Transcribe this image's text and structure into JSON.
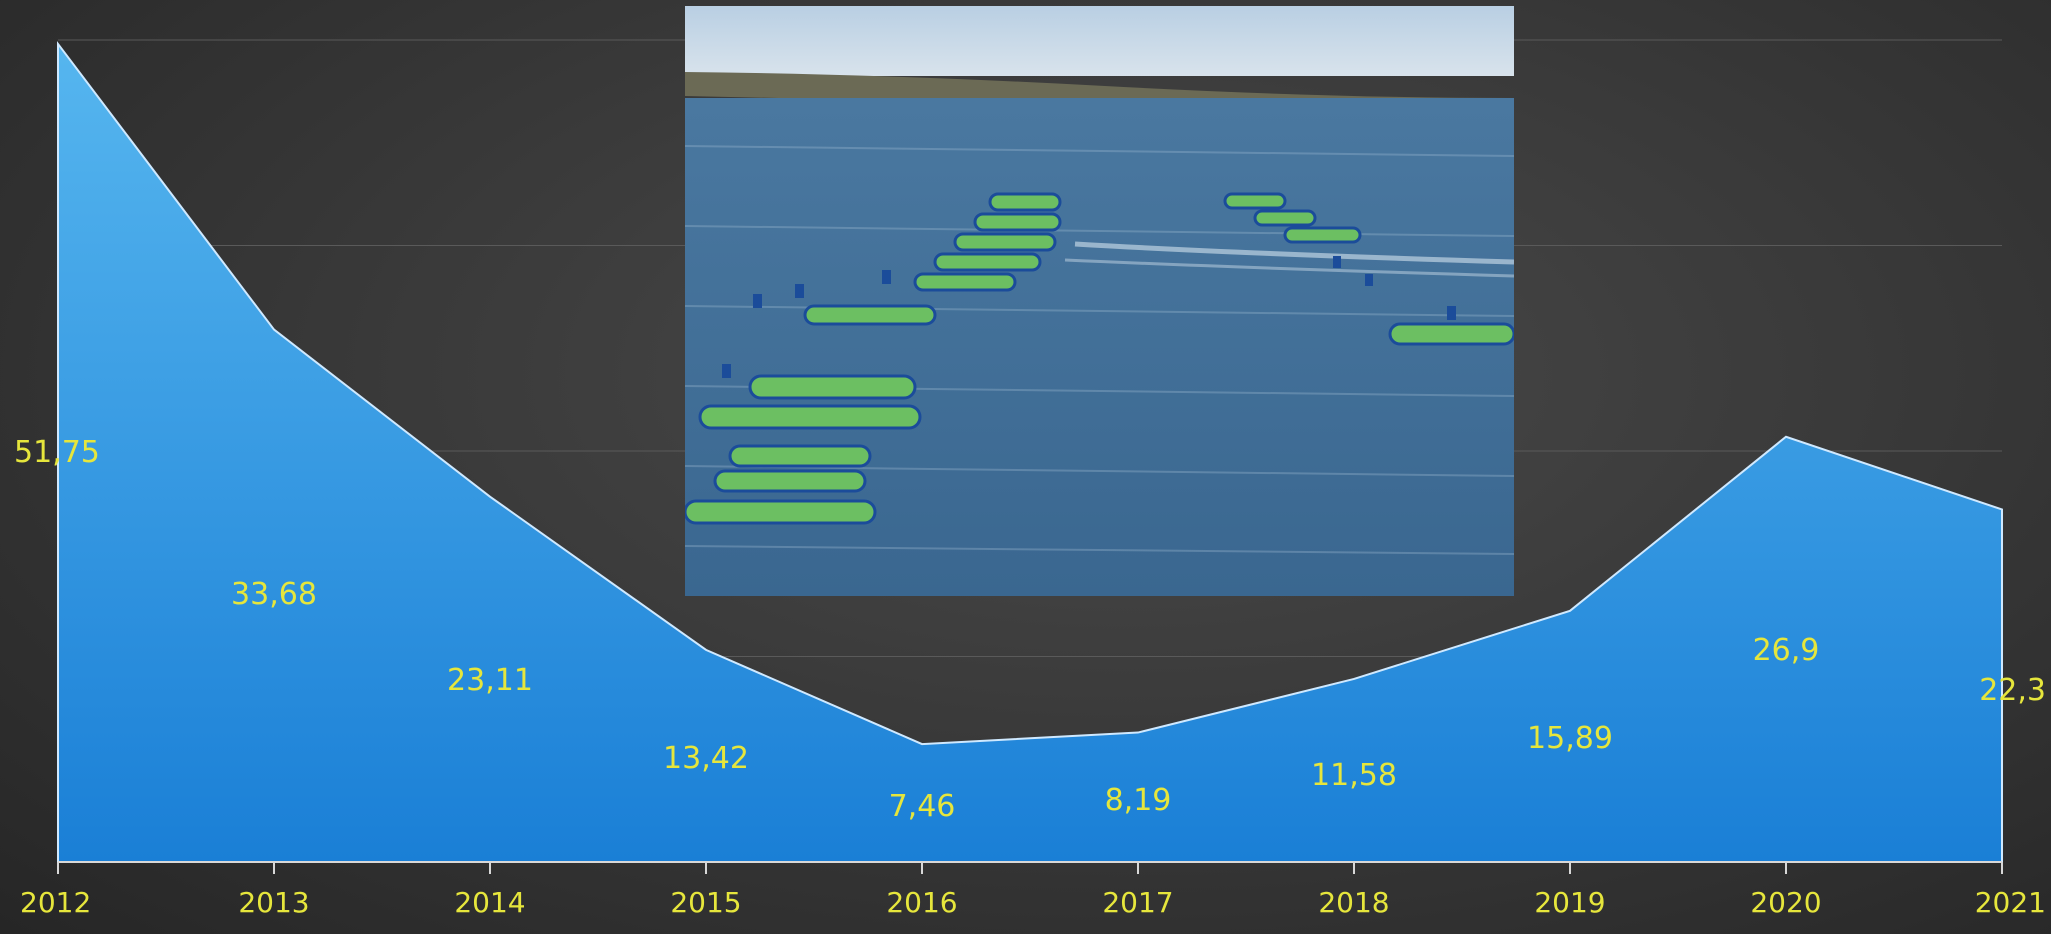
{
  "colors": {
    "area_top": "#56b6ef",
    "area_bottom": "#1a7fd6",
    "label": "#e6e63c",
    "gridline": "#5a5a5a",
    "sky": "#c9d9e8",
    "water": "#3d6d96",
    "shore": "#6a6a5a",
    "net_green": "#6cbf62",
    "buoy": "#1b4c9a"
  },
  "photo": {
    "description_icon": "fish-farm-photo"
  },
  "chart_data": {
    "type": "area",
    "x": [
      "2012",
      "2013",
      "2014",
      "2015",
      "2016",
      "2017",
      "2018",
      "2019",
      "2020",
      "2021"
    ],
    "values": [
      51.75,
      33.68,
      23.11,
      13.42,
      7.46,
      8.19,
      11.58,
      15.89,
      26.9,
      22.3
    ],
    "data_labels": [
      "51,75",
      "33,68",
      "23,11",
      "13,42",
      "7,46",
      "8,19",
      "11,58",
      "15,89",
      "26,9",
      "22,3"
    ],
    "ylim": [
      0,
      52
    ],
    "grid": true,
    "legend": "none"
  }
}
